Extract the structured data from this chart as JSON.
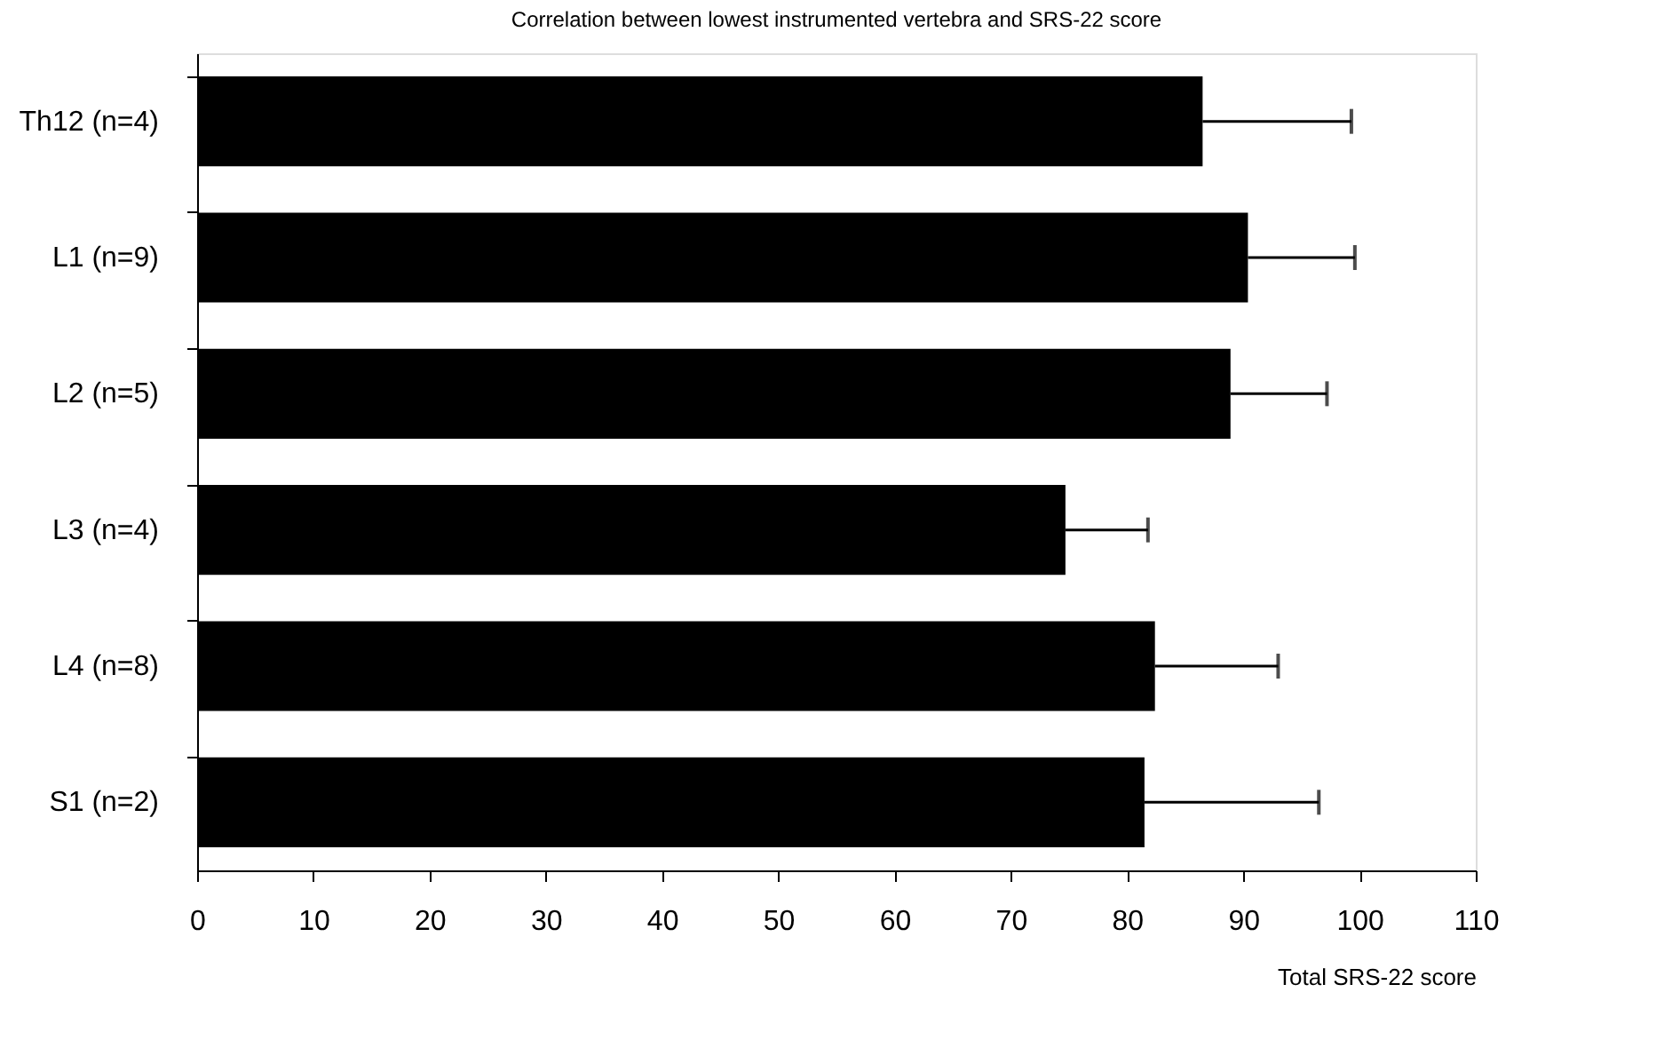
{
  "chart_data": {
    "type": "bar",
    "orientation": "horizontal",
    "title": "Correlation between lowest instrumented vertebra and SRS-22 score",
    "xlabel": "Total SRS-22 score",
    "categories": [
      "Th12  (n=4)",
      "L1   (n=9)",
      "L2   (n=5)",
      "L3   (n=4)",
      "L4   (n=8)",
      "S1   (n=2)"
    ],
    "values": [
      86.5,
      90.4,
      88.9,
      74.7,
      82.4,
      81.5
    ],
    "errors": [
      [
        86.5,
        99.3
      ],
      [
        90.4,
        99.6
      ],
      [
        88.9,
        97.2
      ],
      [
        74.7,
        81.8
      ],
      [
        82.4,
        93.0
      ],
      [
        81.5,
        96.5
      ]
    ],
    "color": "#000000",
    "xlim": [
      0,
      110
    ],
    "xticks": [
      0,
      10,
      20,
      30,
      40,
      50,
      60,
      70,
      80,
      90,
      100,
      110
    ],
    "grid": false
  }
}
